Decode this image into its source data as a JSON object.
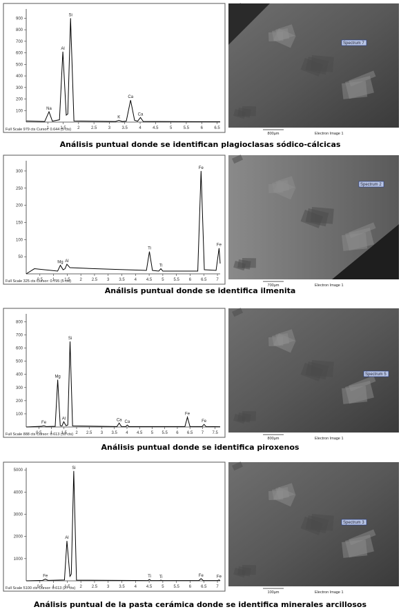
{
  "chart_data": [
    {
      "type": "line",
      "x": [
        0.3,
        0.9,
        1.04,
        1.15,
        1.38,
        1.49,
        1.6,
        1.65,
        1.74,
        1.85,
        3.2,
        3.31,
        3.42,
        3.55,
        3.69,
        3.82,
        3.92,
        4.01,
        4.1,
        6.6
      ],
      "series": [
        {
          "color": "#000000",
          "values": [
            10,
            5,
            90,
            8,
            20,
            610,
            60,
            70,
            900,
            10,
            5,
            15,
            5,
            8,
            190,
            15,
            8,
            40,
            6,
            3
          ]
        }
      ],
      "xlim": [
        0.3,
        6.6
      ],
      "ylim": [
        0,
        980
      ],
      "xticks": [
        1,
        1.5,
        2,
        2.5,
        3,
        3.5,
        4,
        4.5,
        5,
        5.5,
        6,
        6.5
      ],
      "yticks": [
        100,
        200,
        300,
        400,
        500,
        600,
        700,
        800,
        900
      ],
      "annotations": [
        {
          "text": "Na",
          "x": 1.04,
          "y": 90
        },
        {
          "text": "Al",
          "x": 1.49,
          "y": 610
        },
        {
          "text": "Si",
          "x": 1.74,
          "y": 900
        },
        {
          "text": "K",
          "x": 3.31,
          "y": 15
        },
        {
          "text": "Ca",
          "x": 3.69,
          "y": 190
        },
        {
          "text": "Ca",
          "x": 4.01,
          "y": 40
        }
      ],
      "footer": "Full Scale 979 cts Cursor: 0.644 (5 cts)"
    },
    {
      "type": "line",
      "x": [
        0,
        0.3,
        1.15,
        1.25,
        1.35,
        1.42,
        1.49,
        1.6,
        2.5,
        4.4,
        4.51,
        4.62,
        4.85,
        4.93,
        5.0,
        6.28,
        6.4,
        6.52,
        6.95,
        7.06,
        7.1
      ],
      "series": [
        {
          "color": "#000000",
          "values": [
            0,
            15,
            8,
            25,
            12,
            15,
            28,
            18,
            15,
            10,
            65,
            10,
            8,
            15,
            8,
            8,
            300,
            12,
            10,
            75,
            30
          ]
        }
      ],
      "xlim": [
        0,
        7.1
      ],
      "ylim": [
        0,
        330
      ],
      "xticks": [
        0.5,
        1,
        1.5,
        2,
        2.5,
        3,
        3.5,
        4,
        4.5,
        5,
        5.5,
        6,
        6.5,
        7
      ],
      "yticks": [
        50,
        100,
        150,
        200,
        250,
        300
      ],
      "annotations": [
        {
          "text": "Mg",
          "x": 1.25,
          "y": 25
        },
        {
          "text": "Al",
          "x": 1.49,
          "y": 28
        },
        {
          "text": "Ti",
          "x": 4.51,
          "y": 65
        },
        {
          "text": "Ti",
          "x": 4.93,
          "y": 15
        },
        {
          "text": "Fe",
          "x": 6.4,
          "y": 300
        },
        {
          "text": "Fe",
          "x": 7.06,
          "y": 75
        }
      ],
      "footer": "Full Scale 325 cts Cursor: 0.795 (5 cts)"
    },
    {
      "type": "line",
      "x": [
        0,
        0.6,
        0.7,
        0.8,
        1.15,
        1.25,
        1.35,
        1.42,
        1.49,
        1.58,
        1.65,
        1.74,
        1.84,
        3.6,
        3.69,
        3.78,
        3.95,
        4.01,
        4.08,
        6.3,
        6.4,
        6.5,
        6.98,
        7.06,
        7.14,
        7.7
      ],
      "series": [
        {
          "color": "#000000",
          "values": [
            0,
            5,
            10,
            3,
            5,
            360,
            10,
            8,
            40,
            10,
            15,
            650,
            8,
            3,
            30,
            4,
            3,
            15,
            3,
            3,
            75,
            4,
            3,
            20,
            3,
            2
          ]
        }
      ],
      "xlim": [
        0,
        7.7
      ],
      "ylim": [
        0,
        860
      ],
      "xticks": [
        0.5,
        1,
        1.5,
        2,
        2.5,
        3,
        3.5,
        4,
        4.5,
        5,
        5.5,
        6,
        6.5,
        7,
        7.5
      ],
      "yticks": [
        100,
        200,
        300,
        400,
        500,
        600,
        700,
        800
      ],
      "annotations": [
        {
          "text": "Fe",
          "x": 0.7,
          "y": 10
        },
        {
          "text": "Mg",
          "x": 1.25,
          "y": 360
        },
        {
          "text": "Al",
          "x": 1.49,
          "y": 40
        },
        {
          "text": "Si",
          "x": 1.74,
          "y": 650
        },
        {
          "text": "Ca",
          "x": 3.69,
          "y": 30
        },
        {
          "text": "Ca",
          "x": 4.01,
          "y": 15
        },
        {
          "text": "Fe",
          "x": 6.4,
          "y": 75
        },
        {
          "text": "Fe",
          "x": 7.06,
          "y": 20
        }
      ],
      "footer": "Full Scale 888 cts Cursor: 0.613 (10 cts)"
    },
    {
      "type": "line",
      "x": [
        0,
        0.6,
        0.7,
        0.8,
        1.4,
        1.49,
        1.6,
        1.65,
        1.74,
        1.84,
        4.45,
        4.51,
        4.57,
        4.88,
        4.93,
        4.98,
        6.32,
        6.4,
        6.48,
        7.0,
        7.06,
        7.1
      ],
      "series": [
        {
          "color": "#000000",
          "values": [
            0,
            20,
            80,
            20,
            40,
            1800,
            200,
            300,
            4950,
            30,
            10,
            60,
            10,
            10,
            30,
            10,
            10,
            100,
            10,
            10,
            40,
            10
          ]
        }
      ],
      "xlim": [
        0,
        7.1
      ],
      "ylim": [
        0,
        5100
      ],
      "xticks": [
        0.5,
        1,
        1.5,
        2,
        2.5,
        3,
        3.5,
        4,
        4.5,
        5,
        5.5,
        6,
        6.5,
        7
      ],
      "yticks": [
        1000,
        2000,
        3000,
        4000,
        5000
      ],
      "annotations": [
        {
          "text": "Fe",
          "x": 0.7,
          "y": 80
        },
        {
          "text": "Al",
          "x": 1.49,
          "y": 1800
        },
        {
          "text": "Si",
          "x": 1.74,
          "y": 4950
        },
        {
          "text": "Ti",
          "x": 4.51,
          "y": 60
        },
        {
          "text": "Ti",
          "x": 4.93,
          "y": 30
        },
        {
          "text": "Fe",
          "x": 6.4,
          "y": 100
        },
        {
          "text": "Fe",
          "x": 7.06,
          "y": 40
        }
      ],
      "footer": "Full Scale 5100 cts Cursor: 0.613 (27 cts)"
    }
  ],
  "images": [
    {
      "spectrum": "Spectrum 7",
      "scale": "800µm",
      "label": "Electron Image 1"
    },
    {
      "spectrum": "Spectrum 2",
      "scale": "700µm",
      "label": "Electron Image 1"
    },
    {
      "spectrum": "Spectrum 5",
      "scale": "800µm",
      "label": "Electron Image 1"
    },
    {
      "spectrum": "Spectrum 3",
      "scale": "100µm",
      "label": "Electron Image 1"
    }
  ],
  "captions": [
    "Análisis puntual donde se identifican plagioclasas sódico-cálcicas",
    "Análisis puntual donde se identifica ilmenita",
    "Análisis puntual donde se identifica piroxenos",
    "Análisis puntual de la pasta cerámica donde se identifica minerales arcillosos"
  ]
}
